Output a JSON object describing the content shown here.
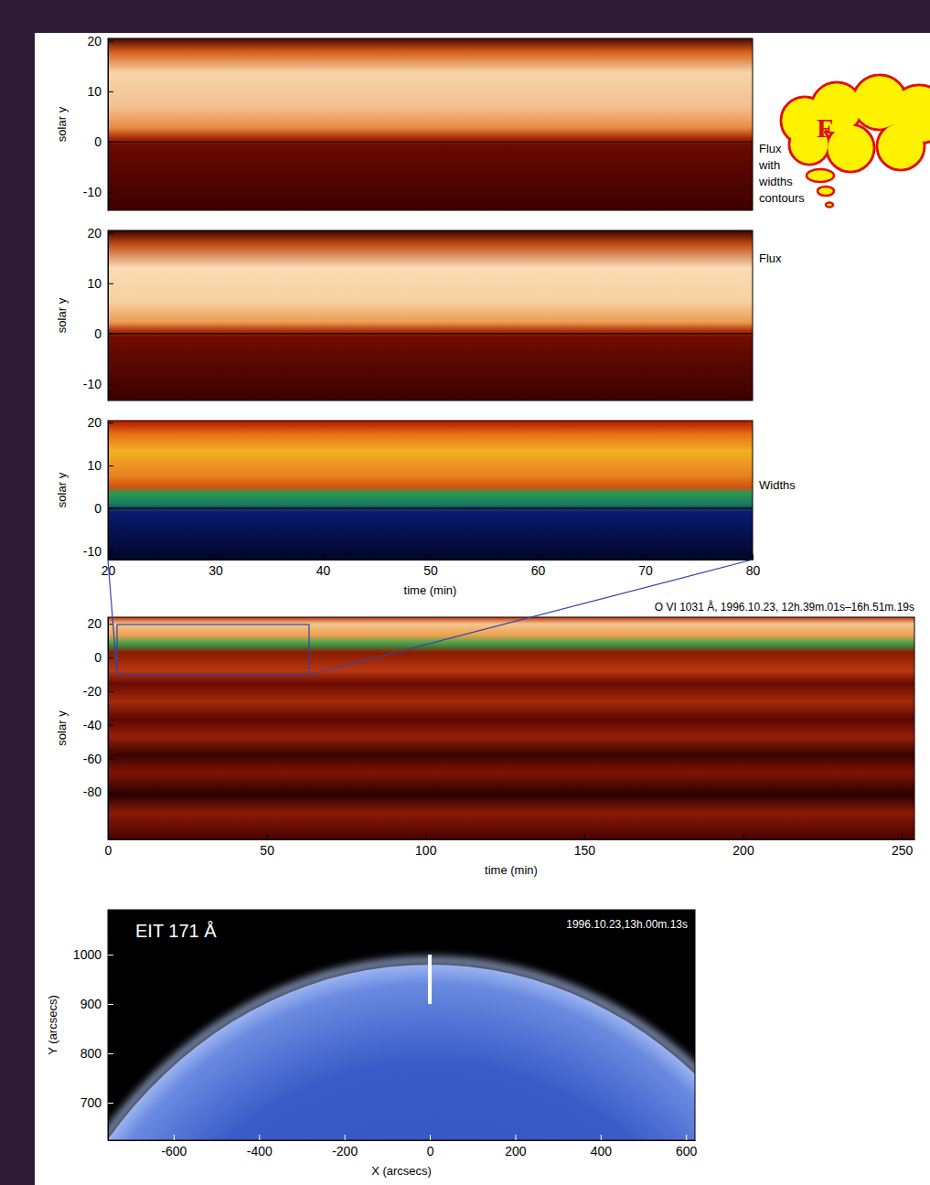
{
  "chart_data": [
    {
      "type": "image",
      "label": "Flux with widths contours",
      "ylabel": "solar y",
      "ylim": [
        -13.6,
        20.5
      ],
      "yticks": [
        -10,
        0,
        10,
        20
      ],
      "tick_labels": "y"
    },
    {
      "type": "image",
      "label": "Flux",
      "ylabel": "solar y",
      "ylim": [
        -13.3,
        20.5
      ],
      "yticks": [
        -10,
        0,
        10,
        20
      ],
      "tick_labels": "y"
    },
    {
      "type": "image",
      "label": "Widths",
      "ylabel": "solar y",
      "xlabel": "time (min)",
      "xlim": [
        20,
        80
      ],
      "xticks": [
        20,
        30,
        40,
        50,
        60,
        70,
        80
      ],
      "ylim": [
        -12,
        20.5
      ],
      "yticks": [
        -10,
        0,
        10,
        20
      ]
    },
    {
      "type": "image",
      "title": "O VI 1031 Å, 1996.10.23, 12h.39m.01s–16h.51m.19s",
      "ylabel": "solar y",
      "xlabel": "time (min)",
      "xlim": [
        0,
        254
      ],
      "xticks": [
        0,
        50,
        100,
        150,
        200,
        250
      ],
      "ylim": [
        -108,
        24
      ],
      "yticks": [
        -80,
        -60,
        -40,
        -20,
        0,
        20
      ]
    },
    {
      "type": "image",
      "title": "EIT 171 Å",
      "subtitle": "1996.10.23,13h.00m.13s",
      "xlabel": "X (arcsecs)",
      "ylabel": "Y (arcsecs)",
      "xlim": [
        -754,
        621
      ],
      "xticks": [
        -600,
        -400,
        -200,
        0,
        200,
        400,
        600
      ],
      "ylim": [
        624,
        1091
      ],
      "yticks": [
        700,
        800,
        900,
        1000
      ],
      "solar_center": [
        0,
        0
      ],
      "solar_radius": 980,
      "slit": {
        "x": 0,
        "y": [
          900,
          1000
        ]
      }
    }
  ],
  "callout": {
    "text": "F"
  }
}
